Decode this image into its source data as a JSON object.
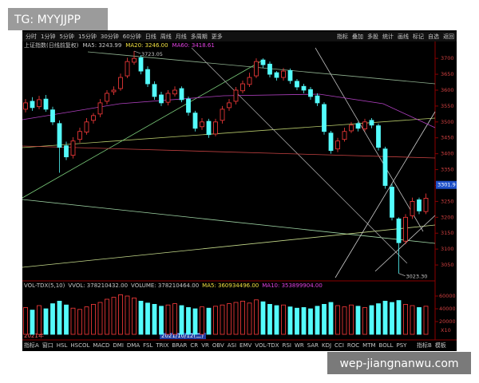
{
  "watermarks": {
    "top": "TG: MYYJJPP",
    "bottom": "wep-jiangnanwu.com"
  },
  "toolbar": {
    "periods": [
      "分时",
      "1分钟",
      "5分钟",
      "15分钟",
      "30分钟",
      "60分钟",
      "日线",
      "周线",
      "月线",
      "多周期",
      "更多"
    ],
    "tools": [
      "指标",
      "叠加",
      "多股",
      "统计",
      "画线",
      "标记",
      "自选",
      "返回"
    ]
  },
  "info": {
    "name": "上证指数(日线前复权)",
    "ma5": "MA5: 3243.99",
    "ma20": "MA20: 3246.00",
    "ma60": "MA60: 3418.61"
  },
  "volume_info": {
    "name": "VOL-TDX(5,10)",
    "vvol": "VVOL: 378210432.00",
    "volume": "VOLUME: 378210464.00",
    "ma5": "MA5: 360934496.00",
    "ma10": "MA10: 353899904.00"
  },
  "dates": {
    "year": "2021年",
    "cursor": "2021/10/12(二)"
  },
  "indicator_tabs": {
    "left": [
      "指标A",
      "窗口",
      "HSL",
      "HSCOL",
      "MACD",
      "DMI",
      "DMA",
      "FSL",
      "TRIX",
      "BRAR",
      "CR",
      "VR",
      "OBV",
      "ASI",
      "EMV",
      "VOL-TDX",
      "RSI",
      "WR",
      "SAR",
      "KDJ",
      "CCI",
      "ROC",
      "MTM",
      "BOLL",
      "PSY"
    ],
    "right": [
      "指标B",
      "模板"
    ]
  },
  "chart_data": {
    "type": "candlestick",
    "open": [
      3540,
      3565,
      3548,
      3572,
      3538,
      3495,
      3425,
      3395,
      3445,
      3468,
      3505,
      3525,
      3565,
      3595,
      3605,
      3645,
      3688,
      3702,
      3665,
      3618,
      3585,
      3562,
      3588,
      3605,
      3572,
      3528,
      3485,
      3502,
      3462,
      3505,
      3545,
      3565,
      3598,
      3618,
      3645,
      3695,
      3682,
      3655,
      3640,
      3662,
      3628,
      3612,
      3602,
      3582,
      3555,
      3465,
      3415,
      3445,
      3472,
      3495,
      3478,
      3505,
      3488,
      3415,
      3295,
      3195,
      3125,
      3205,
      3255,
      3218
    ],
    "close": [
      3560,
      3545,
      3570,
      3540,
      3500,
      3420,
      3390,
      3440,
      3470,
      3500,
      3520,
      3560,
      3590,
      3600,
      3640,
      3690,
      3700,
      3660,
      3620,
      3580,
      3560,
      3590,
      3600,
      3570,
      3530,
      3480,
      3500,
      3460,
      3500,
      3540,
      3560,
      3600,
      3620,
      3640,
      3690,
      3680,
      3650,
      3640,
      3660,
      3630,
      3610,
      3600,
      3580,
      3560,
      3470,
      3410,
      3440,
      3470,
      3490,
      3480,
      3500,
      3490,
      3420,
      3300,
      3200,
      3120,
      3200,
      3250,
      3220,
      3260
    ],
    "high": [
      3572,
      3578,
      3582,
      3585,
      3548,
      3505,
      3438,
      3452,
      3482,
      3512,
      3528,
      3572,
      3600,
      3612,
      3652,
      3702,
      3723.05,
      3710,
      3675,
      3628,
      3595,
      3600,
      3612,
      3612,
      3580,
      3535,
      3512,
      3510,
      3510,
      3550,
      3572,
      3610,
      3630,
      3655,
      3700,
      3700,
      3690,
      3660,
      3670,
      3668,
      3635,
      3620,
      3610,
      3590,
      3562,
      3472,
      3450,
      3482,
      3500,
      3500,
      3510,
      3512,
      3495,
      3422,
      3305,
      3200,
      3210,
      3262,
      3262,
      3275
    ],
    "low": [
      3530,
      3535,
      3540,
      3532,
      3490,
      3340,
      3380,
      3385,
      3435,
      3460,
      3495,
      3515,
      3555,
      3585,
      3598,
      3638,
      3680,
      3650,
      3610,
      3570,
      3550,
      3552,
      3580,
      3562,
      3520,
      3470,
      3475,
      3450,
      3455,
      3495,
      3535,
      3555,
      3590,
      3610,
      3638,
      3670,
      3640,
      3630,
      3630,
      3620,
      3600,
      3590,
      3570,
      3550,
      3460,
      3400,
      3405,
      3438,
      3465,
      3470,
      3470,
      3480,
      3410,
      3290,
      3190,
      3023.3,
      3115,
      3195,
      3210,
      3210
    ],
    "volume": [
      42000,
      38000,
      45000,
      40000,
      48000,
      52000,
      46000,
      41000,
      39000,
      43000,
      47000,
      50000,
      55000,
      58000,
      62000,
      60000,
      57000,
      52000,
      49000,
      47000,
      44000,
      46000,
      48000,
      45000,
      42000,
      40000,
      43000,
      41000,
      44000,
      46000,
      48000,
      50000,
      52000,
      49000,
      54000,
      51000,
      47000,
      45000,
      46000,
      43000,
      41000,
      42000,
      40000,
      44000,
      47000,
      50000,
      45000,
      43000,
      46000,
      44000,
      42000,
      45000,
      48000,
      52000,
      50000,
      53000,
      47000,
      45000,
      42000,
      44000
    ],
    "ylim": [
      3005,
      3728
    ],
    "yticks": [
      3050,
      3100,
      3150,
      3200,
      3250,
      3300,
      3350,
      3400,
      3450,
      3500,
      3550,
      3600,
      3650,
      3700
    ],
    "last_price": 3301.9,
    "high_note": 3723.05,
    "low_note": {
      "value": 3023.3,
      "label": "3023.30"
    },
    "volume_ylim": [
      0,
      70000
    ],
    "volume_yticks": [
      20000,
      40000,
      60000
    ],
    "volume_unit": "X10",
    "up_color": "#ff3c3c",
    "down_color": "#54fcfc"
  }
}
